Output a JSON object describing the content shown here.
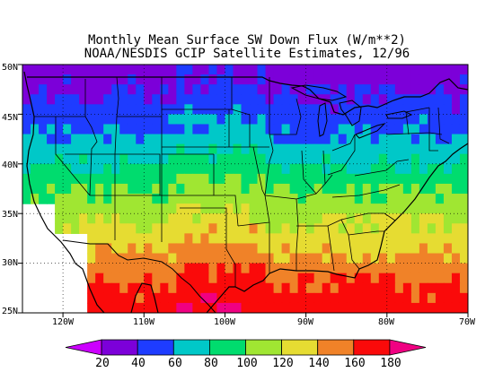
{
  "title": "Monthly Mean Surface SW Down Flux (W/m**2)",
  "subtitle": "NOAA/NESDIS GCIP Satellite Estimates, 12/96",
  "lat_labels": [
    "50N",
    "45N",
    "40N",
    "35N",
    "30N",
    "25N"
  ],
  "lon_labels": [
    "120W",
    "110W",
    "100W",
    "90W",
    "80W",
    "70W"
  ],
  "colorbar": {
    "labels": [
      "20",
      "40",
      "60",
      "80",
      "100",
      "120",
      "140",
      "160",
      "180"
    ],
    "colors": [
      "#cc00ff",
      "#7c00d9",
      "#1e3cff",
      "#00c8c8",
      "#00dc6e",
      "#a0e632",
      "#e6dc32",
      "#f08228",
      "#fa0a0a",
      "#f00082"
    ]
  },
  "chart_data": {
    "type": "heatmap",
    "variable": "Monthly mean surface shortwave downward flux",
    "units": "W/m**2",
    "period": "12/96",
    "lat_range": [
      25,
      50
    ],
    "lon_range": [
      -125,
      -70
    ],
    "color_levels": [
      20,
      40,
      60,
      80,
      100,
      120,
      140,
      160,
      180
    ],
    "approx_zonal_values": [
      {
        "lat": 49,
        "value": 30
      },
      {
        "lat": 46,
        "value": 45
      },
      {
        "lat": 43,
        "value": 60
      },
      {
        "lat": 40,
        "value": 80
      },
      {
        "lat": 37,
        "value": 100
      },
      {
        "lat": 34,
        "value": 120
      },
      {
        "lat": 31,
        "value": 140
      },
      {
        "lat": 28,
        "value": 160
      },
      {
        "lat": 26,
        "value": 170
      }
    ]
  }
}
